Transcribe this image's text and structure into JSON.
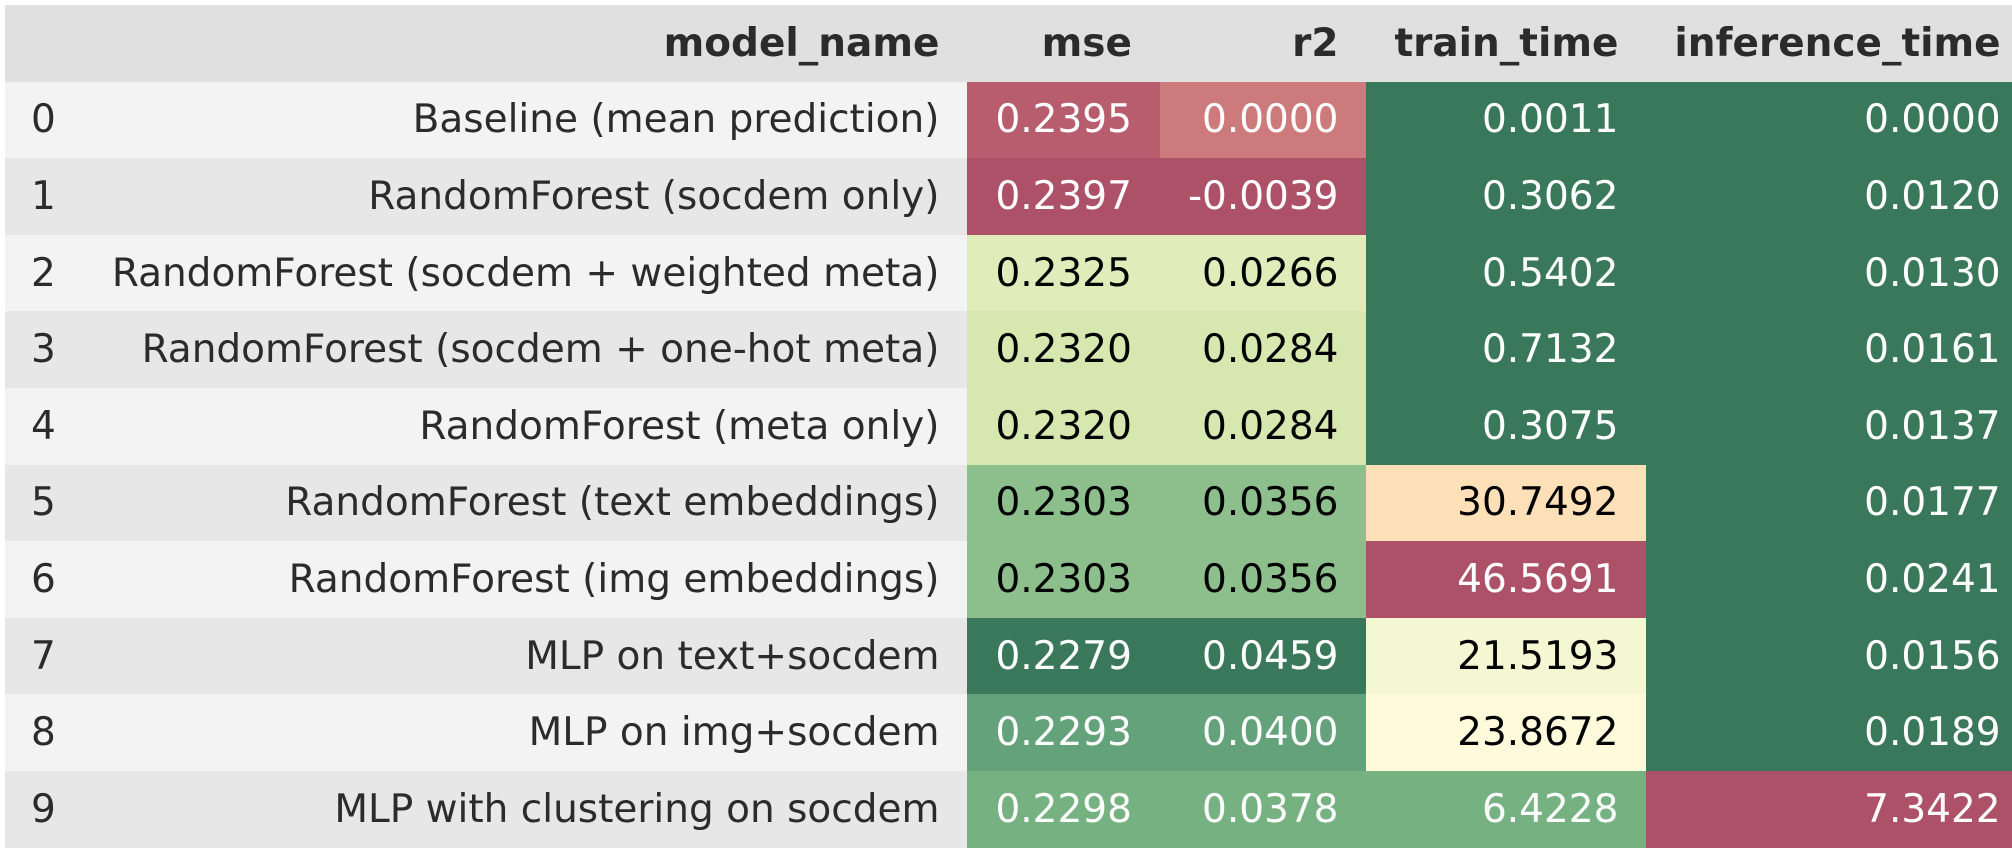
{
  "table": {
    "columns": [
      "",
      "model_name",
      "mse",
      "r2",
      "train_time",
      "inference_time"
    ],
    "rows": [
      {
        "index": "0",
        "model_name": "Baseline (mean prediction)",
        "mse": "0.2395",
        "r2": "0.0000",
        "train_time": "0.0011",
        "inference_time": "0.0000",
        "colors": {
          "mse": "#b85d6e",
          "r2": "#cd7a7c",
          "train_time": "#3a785c",
          "inference_time": "#3a785c"
        }
      },
      {
        "index": "1",
        "model_name": "RandomForest (socdem only)",
        "mse": "0.2397",
        "r2": "-0.0039",
        "train_time": "0.3062",
        "inference_time": "0.0120",
        "colors": {
          "mse": "#ad5168",
          "r2": "#ad5168",
          "train_time": "#3a785c",
          "inference_time": "#3a785c"
        }
      },
      {
        "index": "2",
        "model_name": "RandomForest (socdem + weighted meta)",
        "mse": "0.2325",
        "r2": "0.0266",
        "train_time": "0.5402",
        "inference_time": "0.0130",
        "colors": {
          "mse": "#e0edba",
          "r2": "#e0edba",
          "train_time": "#3a785c",
          "inference_time": "#3a785c"
        }
      },
      {
        "index": "3",
        "model_name": "RandomForest (socdem + one-hot meta)",
        "mse": "0.2320",
        "r2": "0.0284",
        "train_time": "0.7132",
        "inference_time": "0.0161",
        "colors": {
          "mse": "#d6e8b0",
          "r2": "#d6e8b0",
          "train_time": "#3a785c",
          "inference_time": "#3a785c"
        }
      },
      {
        "index": "4",
        "model_name": "RandomForest (meta only)",
        "mse": "0.2320",
        "r2": "0.0284",
        "train_time": "0.3075",
        "inference_time": "0.0137",
        "colors": {
          "mse": "#d6e8b0",
          "r2": "#d6e8b0",
          "train_time": "#3a785c",
          "inference_time": "#3a785c"
        }
      },
      {
        "index": "5",
        "model_name": "RandomForest (text embeddings)",
        "mse": "0.2303",
        "r2": "0.0356",
        "train_time": "30.7492",
        "inference_time": "0.0177",
        "colors": {
          "mse": "#8cbf8c",
          "r2": "#8cbf8c",
          "train_time": "#fde0b8",
          "inference_time": "#3a785c"
        }
      },
      {
        "index": "6",
        "model_name": "RandomForest (img embeddings)",
        "mse": "0.2303",
        "r2": "0.0356",
        "train_time": "46.5691",
        "inference_time": "0.0241",
        "colors": {
          "mse": "#8cbf8c",
          "r2": "#8cbf8c",
          "train_time": "#ad5168",
          "inference_time": "#3a785c"
        }
      },
      {
        "index": "7",
        "model_name": "MLP on text+socdem",
        "mse": "0.2279",
        "r2": "0.0459",
        "train_time": "21.5193",
        "inference_time": "0.0156",
        "colors": {
          "mse": "#3a785c",
          "r2": "#3a785c",
          "train_time": "#f3f7d2",
          "inference_time": "#3a785c"
        }
      },
      {
        "index": "8",
        "model_name": "MLP on img+socdem",
        "mse": "0.2293",
        "r2": "0.0400",
        "train_time": "23.8672",
        "inference_time": "0.0189",
        "colors": {
          "mse": "#63a27a",
          "r2": "#63a27a",
          "train_time": "#fefadb",
          "inference_time": "#3a785c"
        }
      },
      {
        "index": "9",
        "model_name": "MLP with clustering on socdem",
        "mse": "0.2298",
        "r2": "0.0378",
        "train_time": "6.4228",
        "inference_time": "7.3422",
        "colors": {
          "mse": "#76b182",
          "r2": "#76b182",
          "train_time": "#76b182",
          "inference_time": "#ad5168"
        }
      }
    ]
  }
}
